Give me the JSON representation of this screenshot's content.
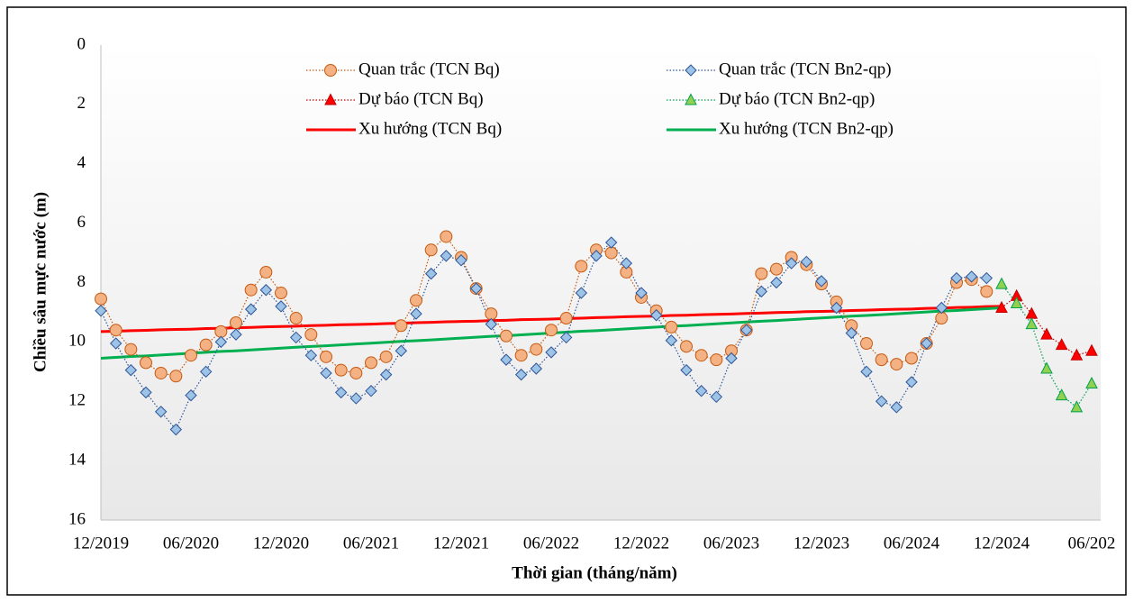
{
  "chart_data": {
    "type": "line",
    "xlabel": "Thời gian (tháng/năm)",
    "ylabel": "Chiều sâu mực nước (m)",
    "categories": [
      "12/2019",
      null,
      null,
      null,
      null,
      null,
      "06/2020",
      null,
      null,
      null,
      null,
      null,
      "12/2020",
      null,
      null,
      null,
      null,
      null,
      "06/2021",
      null,
      null,
      null,
      null,
      null,
      "12/2021",
      null,
      null,
      null,
      null,
      null,
      "06/2022",
      null,
      null,
      null,
      null,
      null,
      "12/2022",
      null,
      null,
      null,
      null,
      null,
      "06/2023",
      null,
      null,
      null,
      null,
      null,
      "12/2023",
      null,
      null,
      null,
      null,
      null,
      "06/2024",
      null,
      null,
      null,
      null,
      null,
      "12/2024",
      null,
      null,
      null,
      null,
      null,
      "06/202"
    ],
    "ylim": [
      0,
      16
    ],
    "yticks": [
      0,
      2,
      4,
      6,
      8,
      10,
      12,
      14,
      16
    ],
    "y_inverted": true,
    "grid": false,
    "series": [
      {
        "name": "Quan trắc (TCN Bq)",
        "color": "#f4b183",
        "edge": "#c55a11",
        "marker": "circle",
        "line": "dotted",
        "values": [
          8.55,
          9.6,
          10.25,
          10.7,
          11.05,
          11.15,
          10.45,
          10.1,
          9.65,
          9.35,
          8.25,
          7.65,
          8.35,
          9.2,
          9.75,
          10.5,
          10.95,
          11.05,
          10.7,
          10.5,
          9.45,
          8.6,
          6.9,
          6.45,
          7.15,
          8.2,
          9.05,
          9.8,
          10.45,
          10.25,
          9.6,
          9.2,
          7.45,
          6.9,
          7.0,
          7.65,
          8.5,
          8.95,
          9.5,
          10.15,
          10.45,
          10.6,
          10.3,
          9.6,
          7.7,
          7.55,
          7.15,
          7.4,
          8.05,
          8.65,
          9.45,
          10.05,
          10.6,
          10.75,
          10.55,
          10.05,
          9.2,
          8.0,
          7.9,
          8.3,
          null,
          null,
          null,
          null,
          null,
          null,
          null
        ]
      },
      {
        "name": "Quan trắc (TCN Bn2-qp)",
        "color": "#9dc3e6",
        "edge": "#2f5597",
        "marker": "diamond",
        "line": "dotted",
        "values": [
          8.95,
          10.05,
          10.95,
          11.7,
          12.35,
          12.95,
          11.8,
          11.0,
          10.0,
          9.75,
          8.9,
          8.25,
          8.8,
          9.85,
          10.45,
          11.05,
          11.7,
          11.9,
          11.65,
          11.1,
          10.3,
          9.05,
          7.7,
          7.1,
          7.25,
          8.2,
          9.4,
          10.6,
          11.1,
          10.9,
          10.35,
          9.85,
          8.35,
          7.1,
          6.65,
          7.35,
          8.35,
          9.1,
          9.95,
          10.95,
          11.65,
          11.85,
          10.55,
          9.6,
          8.3,
          8.0,
          7.35,
          7.3,
          7.95,
          8.85,
          9.7,
          11.0,
          12.0,
          12.2,
          11.35,
          10.05,
          8.85,
          7.85,
          7.8,
          7.85,
          null,
          null,
          null,
          null,
          null,
          null,
          null
        ]
      },
      {
        "name": "Dự báo (TCN Bq)",
        "color": "#ff0000",
        "edge": "#c00000",
        "marker": "triangle",
        "line": "dotted",
        "values": [
          null,
          null,
          null,
          null,
          null,
          null,
          null,
          null,
          null,
          null,
          null,
          null,
          null,
          null,
          null,
          null,
          null,
          null,
          null,
          null,
          null,
          null,
          null,
          null,
          null,
          null,
          null,
          null,
          null,
          null,
          null,
          null,
          null,
          null,
          null,
          null,
          null,
          null,
          null,
          null,
          null,
          null,
          null,
          null,
          null,
          null,
          null,
          null,
          null,
          null,
          null,
          null,
          null,
          null,
          null,
          null,
          null,
          null,
          null,
          null,
          8.85,
          8.45,
          9.05,
          9.75,
          10.1,
          10.45,
          10.3
        ]
      },
      {
        "name": "Dự báo (TCN Bn2-qp)",
        "color": "#92d050",
        "edge": "#00a050",
        "marker": "triangle",
        "line": "dotted",
        "values": [
          null,
          null,
          null,
          null,
          null,
          null,
          null,
          null,
          null,
          null,
          null,
          null,
          null,
          null,
          null,
          null,
          null,
          null,
          null,
          null,
          null,
          null,
          null,
          null,
          null,
          null,
          null,
          null,
          null,
          null,
          null,
          null,
          null,
          null,
          null,
          null,
          null,
          null,
          null,
          null,
          null,
          null,
          null,
          null,
          null,
          null,
          null,
          null,
          null,
          null,
          null,
          null,
          null,
          null,
          null,
          null,
          null,
          null,
          null,
          null,
          8.05,
          8.7,
          9.4,
          10.9,
          11.8,
          12.2,
          11.4
        ]
      },
      {
        "name": "Xu hướng (TCN Bq)",
        "color": "#ff0000",
        "marker": "none",
        "line": "solid",
        "values": [
          9.65,
          9.64,
          9.62,
          9.61,
          9.59,
          9.58,
          9.57,
          9.55,
          9.54,
          9.52,
          9.51,
          9.49,
          9.48,
          9.47,
          9.45,
          9.44,
          9.42,
          9.41,
          9.4,
          9.38,
          9.37,
          9.35,
          9.34,
          9.32,
          9.31,
          9.3,
          9.28,
          9.27,
          9.25,
          9.24,
          9.23,
          9.21,
          9.2,
          9.18,
          9.17,
          9.15,
          9.14,
          9.13,
          9.11,
          9.1,
          9.08,
          9.07,
          9.06,
          9.04,
          9.03,
          9.01,
          9.0,
          8.98,
          8.97,
          8.96,
          8.94,
          8.93,
          8.91,
          8.9,
          8.89,
          8.87,
          8.86,
          8.84,
          8.83,
          8.81,
          8.8,
          null,
          null,
          null,
          null,
          null,
          null
        ]
      },
      {
        "name": "Xu hướng (TCN Bn2-qp)",
        "color": "#00b050",
        "marker": "none",
        "line": "solid",
        "values": [
          10.55,
          10.52,
          10.49,
          10.47,
          10.44,
          10.41,
          10.38,
          10.35,
          10.32,
          10.3,
          10.27,
          10.24,
          10.21,
          10.18,
          10.15,
          10.13,
          10.1,
          10.07,
          10.04,
          10.01,
          9.98,
          9.96,
          9.93,
          9.9,
          9.87,
          9.84,
          9.81,
          9.79,
          9.76,
          9.73,
          9.7,
          9.67,
          9.64,
          9.62,
          9.59,
          9.56,
          9.53,
          9.5,
          9.47,
          9.45,
          9.42,
          9.39,
          9.36,
          9.33,
          9.3,
          9.28,
          9.25,
          9.22,
          9.19,
          9.16,
          9.13,
          9.11,
          9.08,
          9.05,
          9.02,
          8.99,
          8.96,
          8.94,
          8.91,
          8.88,
          8.85,
          null,
          null,
          null,
          null,
          null,
          null
        ]
      }
    ]
  }
}
